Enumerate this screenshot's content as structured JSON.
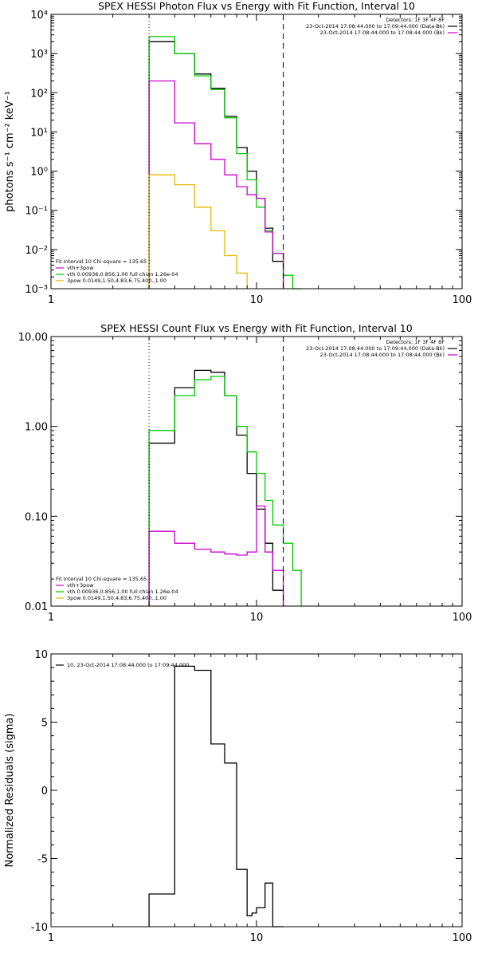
{
  "chart_data": [
    {
      "id": "photon",
      "type": "line",
      "title": "SPEX HESSI Photon Flux vs Energy with Fit Function, Interval 10",
      "ylabel": "photons s⁻¹ cm⁻² keV⁻¹",
      "xscale": "log",
      "yscale": "log",
      "xlim": [
        1,
        100
      ],
      "ylim": [
        0.001,
        10000
      ],
      "xticks": [
        {
          "v": 1,
          "label": "1"
        },
        {
          "v": 10,
          "label": "10"
        },
        {
          "v": 100,
          "label": "100"
        }
      ],
      "yticks": [
        {
          "v": 0.001,
          "label": "10⁻³"
        },
        {
          "v": 0.01,
          "label": "10⁻²"
        },
        {
          "v": 0.1,
          "label": "10⁻¹"
        },
        {
          "v": 1,
          "label": "10⁰"
        },
        {
          "v": 10,
          "label": "10¹"
        },
        {
          "v": 100,
          "label": "10²"
        },
        {
          "v": 1000,
          "label": "10³"
        },
        {
          "v": 10000,
          "label": "10⁴"
        }
      ],
      "vlines": [
        {
          "x": 3.0,
          "style": "dotted"
        },
        {
          "x": 13.5,
          "style": "dashed"
        }
      ],
      "info_right": [
        {
          "text": "Detectors: 1F 3F 4F 8F"
        },
        {
          "text": "23-Oct-2014 17:08:44.000 to 17:09:44.000 (Data-Bk)",
          "color": "#000000"
        },
        {
          "text": "23-Oct-2014 17:08:44.000 to 17:08:44.000 (Bk)",
          "color": "#cc00cc"
        }
      ],
      "legend_left": [
        {
          "text": "Fit Interval 10    Chi-square = 135.65"
        },
        {
          "text": "vth+3pow",
          "color": "#cc00cc"
        },
        {
          "text": "vth 0.00936,0.856,1.00  full chian 1.26e-04",
          "color": "#00cc00"
        },
        {
          "text": "3pow 0.0149,1.50,4.83,6.75,400.,1.00",
          "color": "#e6b800"
        }
      ],
      "series": [
        {
          "color": "#000000",
          "edges": [
            3.0,
            4.0,
            5.0,
            6.0,
            7.0,
            8.0,
            9.0,
            10.0,
            11.0,
            12.0,
            13.5
          ],
          "values": [
            2000,
            1000,
            300,
            130,
            25,
            4,
            1,
            0.2,
            0.035,
            0.005
          ]
        },
        {
          "color": "#00cc00",
          "edges": [
            3.0,
            4.0,
            5.0,
            6.0,
            7.0,
            8.0,
            9.0,
            10.0,
            11.0,
            12.0,
            13.5,
            15.0,
            16.5
          ],
          "values": [
            2700,
            1000,
            270,
            120,
            23,
            2.8,
            0.6,
            0.12,
            0.03,
            0.008,
            0.0022,
            0.001
          ]
        },
        {
          "color": "#cc00cc",
          "edges": [
            3.0,
            4.0,
            5.0,
            6.0,
            7.0,
            8.0,
            9.0,
            10.0,
            11.0,
            12.0,
            13.5
          ],
          "values": [
            200,
            17,
            5,
            2,
            0.8,
            0.4,
            0.25,
            0.2,
            0.028,
            0.008
          ]
        },
        {
          "color": "#e6b800",
          "edges": [
            3.0,
            4.0,
            5.0,
            6.0,
            7.0,
            8.0,
            9.0
          ],
          "values": [
            0.8,
            0.45,
            0.12,
            0.03,
            0.007,
            0.0025
          ]
        }
      ]
    },
    {
      "id": "count",
      "type": "line",
      "title": "SPEX HESSI Count Flux vs Energy with Fit Function, Interval 10",
      "xscale": "log",
      "yscale": "log",
      "xlim": [
        1,
        100
      ],
      "ylim": [
        0.01,
        10
      ],
      "xticks": [
        {
          "v": 1,
          "label": "1"
        },
        {
          "v": 10,
          "label": "10"
        },
        {
          "v": 100,
          "label": "100"
        }
      ],
      "yticks": [
        {
          "v": 0.01,
          "label": "0.01"
        },
        {
          "v": 0.1,
          "label": "0.10"
        },
        {
          "v": 1,
          "label": "1.00"
        },
        {
          "v": 10,
          "label": "10.00"
        }
      ],
      "vlines": [
        {
          "x": 3.0,
          "style": "dotted"
        },
        {
          "x": 13.5,
          "style": "dashed"
        }
      ],
      "info_right": [
        {
          "text": "Detectors: 1F 3F 4F 8F"
        },
        {
          "text": "23-Oct-2014 17:08:44.000 to 17:09:44.000 (Data-Bk)",
          "color": "#000000"
        },
        {
          "text": "23-Oct-2014 17:08:44.000 to 17:08:44.000 (Bk)",
          "color": "#cc00cc"
        }
      ],
      "legend_left": [
        {
          "text": "Fit Interval 10    Chi-square = 135.65"
        },
        {
          "text": "vth+3pow",
          "color": "#cc00cc"
        },
        {
          "text": "vth 0.00936,0.856,1.00  full chian 1.26e-04",
          "color": "#00cc00"
        },
        {
          "text": "3pow 0.0149,1.50,4.83,6.75,400.,1.00",
          "color": "#e6b800"
        }
      ],
      "series": [
        {
          "color": "#000000",
          "edges": [
            3.0,
            4.0,
            5.0,
            6.0,
            7.0,
            8.0,
            9.0,
            10.0,
            11.0,
            12.0,
            13.5
          ],
          "values": [
            0.65,
            2.7,
            4.2,
            4.0,
            2.2,
            0.8,
            0.3,
            0.12,
            0.05,
            0.015
          ]
        },
        {
          "color": "#00cc00",
          "edges": [
            3.0,
            4.0,
            5.0,
            6.0,
            7.0,
            8.0,
            9.0,
            10.0,
            11.0,
            12.0,
            13.5,
            15.0,
            16.5
          ],
          "values": [
            0.9,
            2.2,
            3.3,
            3.6,
            2.2,
            1.0,
            0.52,
            0.3,
            0.15,
            0.08,
            0.05,
            0.025
          ]
        },
        {
          "color": "#cc00cc",
          "edges": [
            3.0,
            4.0,
            5.0,
            6.0,
            7.0,
            8.0,
            9.0,
            10.0,
            11.0,
            12.0,
            13.5
          ],
          "values": [
            0.068,
            0.05,
            0.043,
            0.04,
            0.038,
            0.037,
            0.04,
            0.13,
            0.04,
            0.025
          ]
        }
      ]
    },
    {
      "id": "residuals",
      "type": "line",
      "ylabel": "Normalized Residuals (sigma)",
      "xscale": "log",
      "yscale": "linear",
      "xlim": [
        1,
        100
      ],
      "ylim": [
        -10,
        10
      ],
      "xticks": [
        {
          "v": 1,
          "label": "1"
        },
        {
          "v": 10,
          "label": "10"
        },
        {
          "v": 100,
          "label": "100"
        }
      ],
      "yticks": [
        {
          "v": -10,
          "label": "-10"
        },
        {
          "v": -5,
          "label": "-5"
        },
        {
          "v": 0,
          "label": "0"
        },
        {
          "v": 5,
          "label": "5"
        },
        {
          "v": 10,
          "label": "10"
        }
      ],
      "legend_left": [
        {
          "text": "10, 23-Oct-2014 17:08:44.000 to 17:09:44.000",
          "color": "#000000"
        }
      ],
      "series": [
        {
          "color": "#000000",
          "edges": [
            3.0,
            4.0,
            5.0,
            6.0,
            7.0,
            8.0,
            9.0,
            9.5,
            10.0,
            11.0,
            12.0,
            13.5
          ],
          "values": [
            -7.6,
            9.1,
            8.8,
            3.4,
            2.0,
            -5.8,
            -9.2,
            -9.0,
            -8.6,
            -6.8,
            -10
          ]
        }
      ]
    }
  ]
}
